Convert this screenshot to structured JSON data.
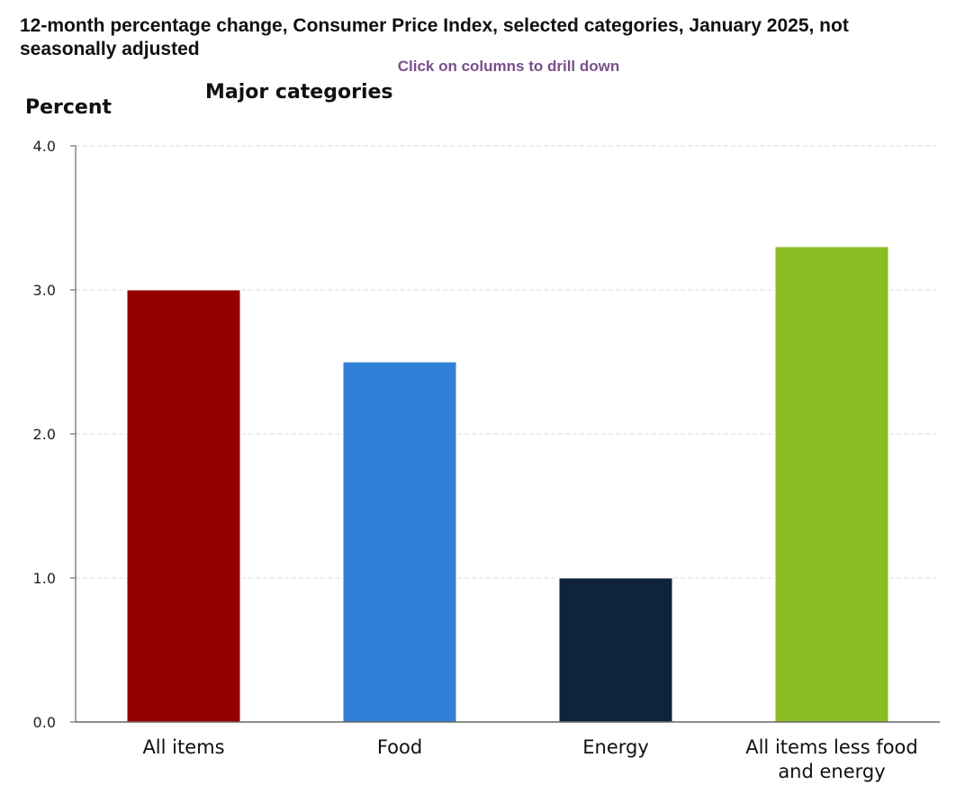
{
  "header": {
    "title": "12-month percentage change, Consumer Price Index, selected categories, January 2025, not seasonally adjusted",
    "drill_hint": "Click on columns to drill down"
  },
  "chart_data": {
    "type": "bar",
    "title": "12-month percentage change, Consumer Price Index, selected categories, January 2025, not seasonally adjusted",
    "subtitle": "Major categories",
    "xlabel": "",
    "ylabel": "Percent",
    "ylim": [
      0,
      4
    ],
    "yticks": [
      "0.0",
      "1.0",
      "2.0",
      "3.0",
      "4.0"
    ],
    "grid": true,
    "categories": [
      [
        "All items"
      ],
      [
        "Food"
      ],
      [
        "Energy"
      ],
      [
        "All items less food",
        "and energy"
      ]
    ],
    "values": [
      3.0,
      2.5,
      1.0,
      3.3
    ],
    "colors": [
      "#940000",
      "#3080d8",
      "#0f243a",
      "#8abd22"
    ]
  }
}
